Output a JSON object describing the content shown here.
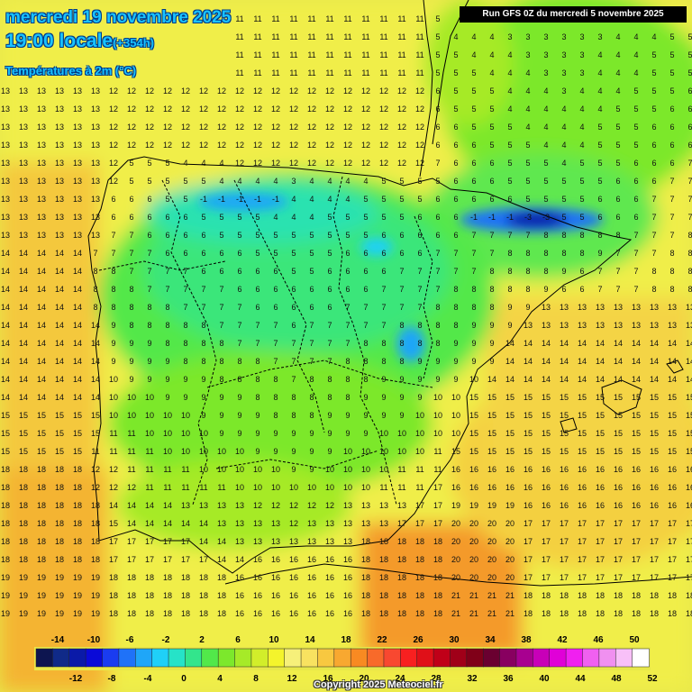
{
  "header": {
    "date_line": "mercredi 19 novembre 2025",
    "time_line": "19:00 locale",
    "offset": "(+354h)",
    "field_title": "Températures à 2m (°C)"
  },
  "run_info": "Run GFS 0Z du mercredi 5 novembre 2025",
  "copyright": "Copyright 2025 Meteociel.fr",
  "legend": {
    "top_labels": [
      "-14",
      "-10",
      "-6",
      "-2",
      "2",
      "6",
      "10",
      "14",
      "18",
      "22",
      "26",
      "30",
      "34",
      "38",
      "42",
      "46",
      "50"
    ],
    "bottom_labels": [
      "-12",
      "-8",
      "-4",
      "0",
      "4",
      "8",
      "12",
      "16",
      "20",
      "24",
      "28",
      "32",
      "36",
      "40",
      "44",
      "48",
      "52"
    ],
    "colors": [
      "#0d1550",
      "#102a88",
      "#0a1aa8",
      "#0a0ad8",
      "#1a3cf0",
      "#1f72f8",
      "#1fa6f8",
      "#1fd0f8",
      "#26e3c8",
      "#33e58c",
      "#52e84a",
      "#7ce82c",
      "#a6ea28",
      "#d2ee2a",
      "#f4f42c",
      "#f6f07a",
      "#f8e260",
      "#f8c840",
      "#f8a830",
      "#f88a22",
      "#f86a2a",
      "#f84830",
      "#f82020",
      "#e01018",
      "#c00018",
      "#a00018",
      "#800018",
      "#6a0030",
      "#880060",
      "#a80090",
      "#c800b8",
      "#e000d8",
      "#f020f0",
      "#f060f0",
      "#f090f0",
      "#f8c0f8",
      "#ffffff"
    ]
  }
}
